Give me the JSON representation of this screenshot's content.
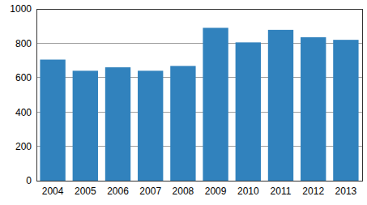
{
  "chart_data": {
    "type": "bar",
    "categories": [
      "2004",
      "2005",
      "2006",
      "2007",
      "2008",
      "2009",
      "2010",
      "2011",
      "2012",
      "2013"
    ],
    "values": [
      705,
      640,
      660,
      640,
      668,
      890,
      805,
      878,
      835,
      820
    ],
    "color": "#3182bd",
    "ylim": [
      0,
      1000
    ],
    "yticks": [
      0,
      200,
      400,
      600,
      800,
      1000
    ],
    "grid": true
  }
}
